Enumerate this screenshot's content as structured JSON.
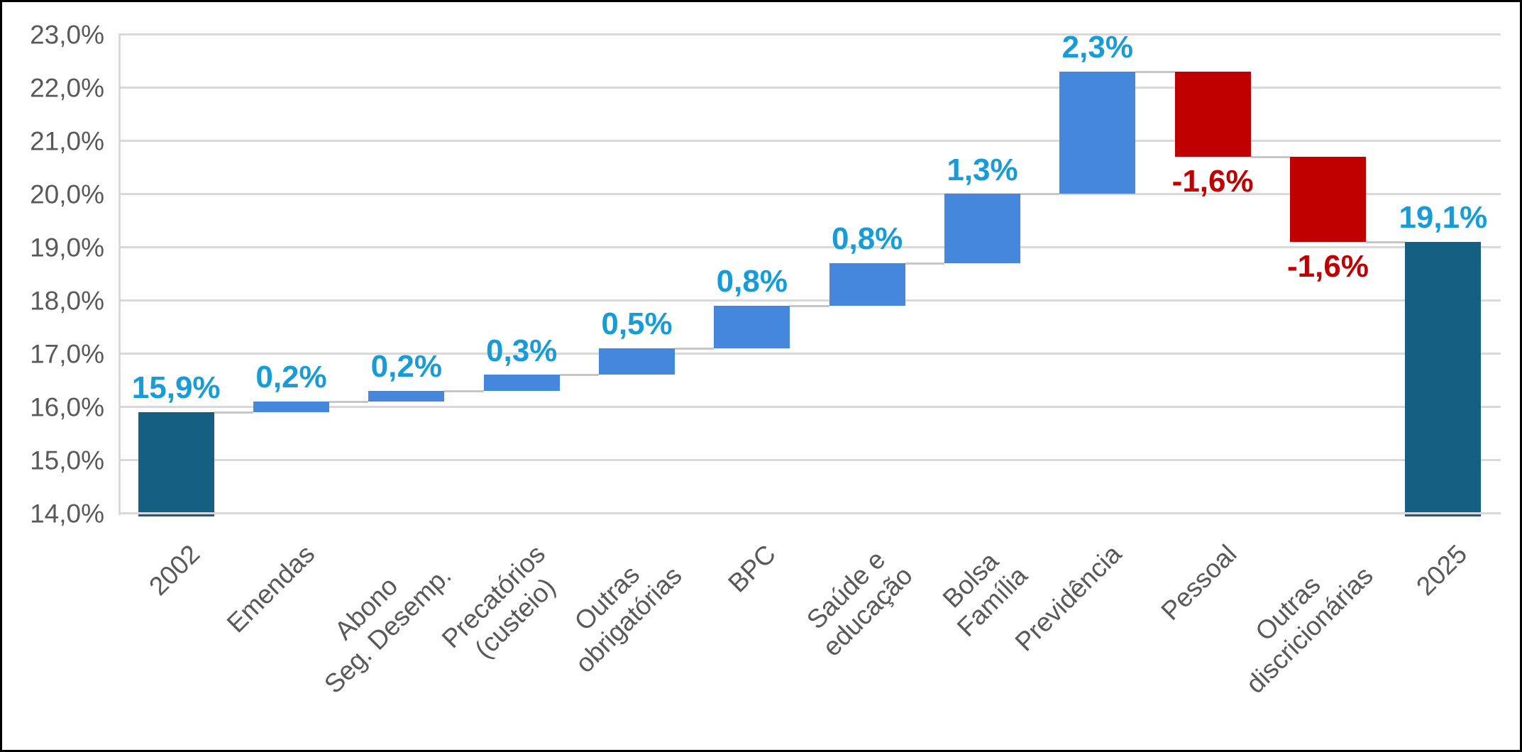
{
  "chart_data": {
    "type": "bar",
    "subtype": "waterfall",
    "title": "",
    "xlabel": "",
    "ylabel": "",
    "unit": "percent",
    "decimal_style": "comma",
    "categories": [
      "2002",
      "Emendas",
      "Abono\nSeg. Desemp.",
      "Precatórios\n(custeio)",
      "Outras\nobrigatórias",
      "BPC",
      "Saúde e\neducação",
      "Bolsa\nFamília",
      "Previdência",
      "Pessoal",
      "Outras\ndiscricionárias",
      "2025"
    ],
    "values": [
      15.9,
      0.2,
      0.2,
      0.3,
      0.5,
      0.8,
      0.8,
      1.3,
      2.3,
      -1.6,
      -1.6,
      19.1
    ],
    "bar_types": [
      "total",
      "increase",
      "increase",
      "increase",
      "increase",
      "increase",
      "increase",
      "increase",
      "increase",
      "decrease",
      "decrease",
      "total"
    ],
    "data_labels": [
      "15,9%",
      "0,2%",
      "0,2%",
      "0,3%",
      "0,5%",
      "0,8%",
      "0,8%",
      "1,3%",
      "2,3%",
      "-1,6%",
      "-1,6%",
      "19,1%"
    ],
    "cumulative": [
      15.9,
      16.1,
      16.3,
      16.6,
      17.1,
      17.9,
      18.7,
      20.0,
      22.3,
      20.7,
      19.1,
      19.1
    ],
    "y_ticks": [
      "23,0%",
      "22,0%",
      "21,0%",
      "20,0%",
      "19,0%",
      "18,0%",
      "17,0%",
      "16,0%",
      "15,0%",
      "14,0%"
    ],
    "ylim": [
      14,
      23
    ],
    "y_step": 1,
    "grid": true,
    "legend": "none",
    "connectors": true,
    "colors": {
      "total": "#156082",
      "increase": "#4487DC",
      "decrease": "#C00000",
      "label_positive": "#189CD8",
      "label_negative": "#C00000",
      "axis_text": "#595959",
      "gridline": "#D9D9D9",
      "connector": "#C6C6C6",
      "background": "#FFFFFF",
      "border": "#000000"
    }
  }
}
